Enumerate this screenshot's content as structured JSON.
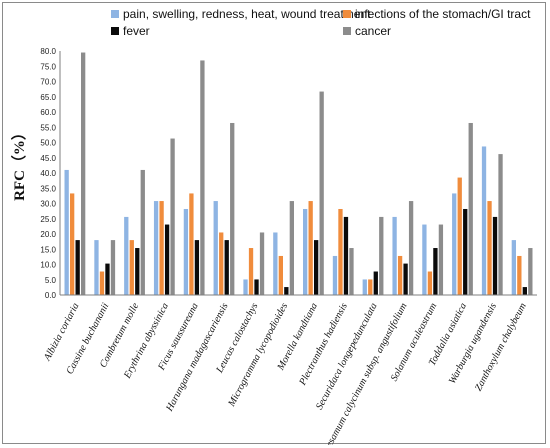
{
  "chart_data": {
    "type": "bar",
    "title": "",
    "xlabel": "",
    "ylabel": "RFC（%）",
    "ylim": [
      0,
      80
    ],
    "yticks": [
      "0.0",
      "5.0",
      "10.0",
      "15.0",
      "20.0",
      "25.0",
      "30.0",
      "35.0",
      "40.0",
      "45.0",
      "50.0",
      "55.0",
      "60.0",
      "65.0",
      "70.0",
      "75.0",
      "80.0"
    ],
    "grid": false,
    "legend_position": "top",
    "categories": [
      "Albizia coriaria",
      "Cassine buchananii",
      "Combretum molle",
      "Erythrina abyssinica",
      "Ficus saussureana",
      "Harungana madagascariensis",
      "Leucas calostachys",
      "Microgramma lycopodioides",
      "Morella kandtiana",
      "Plectranthus hadiensis",
      "Securidaca longepedunculata",
      "Sesamum calycinum subsp. angustifolium",
      "Solanum aculeastrum",
      "Toddalia asiatica",
      "Warburgia ugandensis",
      "Zanthoxylum chalybeum"
    ],
    "series": [
      {
        "name": "pain, swelling, redness, heat, wound treatment",
        "color": "#8eb4e3",
        "values": [
          41.0,
          18.0,
          25.6,
          30.8,
          28.2,
          30.8,
          5.1,
          20.5,
          28.2,
          12.8,
          5.1,
          25.6,
          23.1,
          33.3,
          48.7,
          18.0
        ]
      },
      {
        "name": "infections of the stomach/GI tract",
        "color": "#f08c3c",
        "values": [
          33.3,
          7.7,
          18.0,
          30.8,
          33.3,
          20.5,
          15.4,
          12.8,
          30.8,
          28.2,
          5.1,
          12.8,
          7.7,
          38.5,
          30.8,
          12.8
        ]
      },
      {
        "name": "fever",
        "color": "#0a0a0a",
        "values": [
          18.0,
          10.3,
          15.4,
          23.1,
          18.0,
          18.0,
          5.1,
          2.6,
          18.0,
          25.6,
          7.7,
          10.3,
          15.4,
          28.2,
          25.6,
          2.6
        ]
      },
      {
        "name": "cancer",
        "color": "#8c8c8c",
        "values": [
          79.5,
          18.0,
          41.0,
          51.3,
          76.9,
          56.4,
          20.5,
          30.8,
          66.7,
          15.4,
          25.6,
          30.8,
          23.1,
          56.4,
          46.2,
          15.4
        ]
      }
    ]
  }
}
